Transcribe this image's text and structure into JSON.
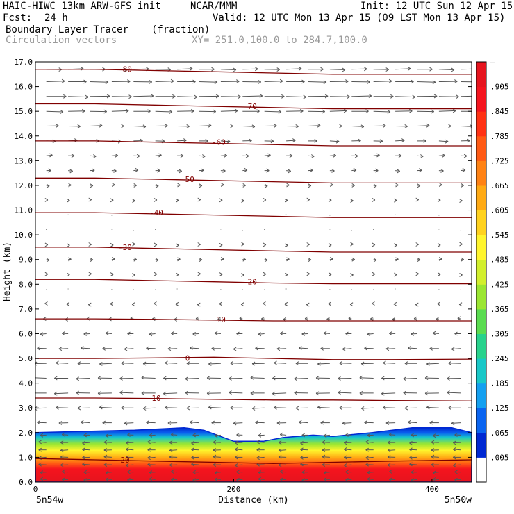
{
  "header": {
    "model": "HAIC-HIWC 13km ARW-GFS init",
    "org": "NCAR/MMM",
    "init": "Init: 12 UTC Sun 12 Apr 15",
    "fcst_label": "Fcst:",
    "fcst_value": "24 h",
    "valid": "Valid: 12 UTC Mon 13 Apr 15 (09 LST Mon 13 Apr 15)",
    "field_name": "Boundary Layer Tracer",
    "field_units": "(fraction)",
    "vectors_label": "Circulation vectors",
    "xy_label": "XY= 251.0,100.0 to 284.7,100.0"
  },
  "axes": {
    "ylabel": "Height (km)",
    "xlabel": "Distance (km)",
    "left_location": "5n54w",
    "right_location": "5n50w",
    "y_ticks": [
      "0.0",
      "1.0",
      "2.0",
      "3.0",
      "4.0",
      "5.0",
      "6.0",
      "7.0",
      "8.0",
      "9.0",
      "10.0",
      "11.0",
      "12.0",
      "13.0",
      "14.0",
      "15.0",
      "16.0",
      "17.0"
    ],
    "x_ticks": [
      "0",
      "200",
      "400"
    ]
  },
  "colorbar": {
    "labels": [
      ".005",
      ".065",
      ".125",
      ".185",
      ".245",
      ".305",
      ".365",
      ".425",
      ".485",
      ".545",
      ".605",
      ".665",
      ".725",
      ".785",
      ".845",
      ".905"
    ],
    "colors": [
      "#ffffff",
      "#0028d2",
      "#0a64f0",
      "#14a0f0",
      "#19c8c8",
      "#28d28c",
      "#5adc50",
      "#9be632",
      "#d2ef2d",
      "#fff52d",
      "#ffd21e",
      "#ffaa14",
      "#ff8214",
      "#ff5a14",
      "#ff3214",
      "#f5141e",
      "#e6141e"
    ]
  },
  "chart_data": {
    "type": "heatmap",
    "title": "Boundary Layer Tracer",
    "units": "fraction",
    "xlabel": "Distance (km)",
    "ylabel": "Height (km)",
    "xlim": [
      0,
      440
    ],
    "ylim": [
      0,
      17
    ],
    "tracer_top_km": {
      "x": [
        0,
        50,
        100,
        150,
        170,
        200,
        230,
        250,
        280,
        300,
        340,
        380,
        420,
        440
      ],
      "y": [
        2.0,
        2.05,
        2.1,
        2.2,
        2.1,
        1.65,
        1.65,
        1.8,
        1.9,
        1.85,
        2.0,
        2.2,
        2.2,
        2.0
      ]
    },
    "temperature_contours": [
      {
        "label": "20",
        "y": [
          0.95,
          0.9,
          0.85,
          0.8,
          0.75,
          0.8,
          0.85,
          0.9
        ]
      },
      {
        "label": "10",
        "y": [
          3.4,
          3.4,
          3.38,
          3.35,
          3.32,
          3.32,
          3.3,
          3.28
        ]
      },
      {
        "label": "0",
        "y": [
          5.0,
          5.0,
          5.02,
          5.05,
          5.0,
          4.95,
          4.95,
          4.97
        ]
      },
      {
        "label": "-10",
        "y": [
          6.6,
          6.6,
          6.58,
          6.55,
          6.52,
          6.52,
          6.52,
          6.52
        ]
      },
      {
        "label": "-20",
        "y": [
          8.2,
          8.2,
          8.15,
          8.1,
          8.05,
          8.02,
          8.02,
          8.02
        ]
      },
      {
        "label": "-30",
        "y": [
          9.5,
          9.5,
          9.45,
          9.4,
          9.35,
          9.3,
          9.3,
          9.3
        ]
      },
      {
        "label": "-40",
        "y": [
          10.9,
          10.9,
          10.85,
          10.8,
          10.75,
          10.7,
          10.7,
          10.7
        ]
      },
      {
        "label": "-50",
        "y": [
          12.3,
          12.3,
          12.25,
          12.2,
          12.15,
          12.1,
          12.1,
          12.1
        ]
      },
      {
        "label": "-60",
        "y": [
          13.8,
          13.8,
          13.75,
          13.7,
          13.65,
          13.6,
          13.6,
          13.6
        ]
      },
      {
        "label": "-70",
        "y": [
          15.3,
          15.3,
          15.25,
          15.2,
          15.15,
          15.1,
          15.1,
          15.1
        ]
      },
      {
        "label": "-80",
        "y": [
          16.7,
          16.7,
          16.65,
          16.6,
          16.55,
          16.5,
          16.5,
          16.5
        ]
      }
    ],
    "contour_x": [
      0,
      60,
      120,
      180,
      240,
      300,
      360,
      440
    ],
    "vector_rows_km": [
      0.1,
      0.4,
      0.7,
      1.0,
      1.3,
      1.6,
      1.9,
      2.4,
      3.0,
      3.6,
      4.2,
      4.8,
      5.4,
      6.0,
      6.6,
      7.2,
      7.8,
      8.4,
      9.0,
      9.6,
      10.2,
      10.8,
      11.4,
      12.0,
      12.6,
      13.2,
      13.8,
      14.4,
      15.0,
      15.6,
      16.2,
      16.7
    ],
    "vector_u_by_row": [
      -4,
      -4,
      -5,
      -5,
      -5,
      -5,
      -4,
      -6,
      -8,
      -9,
      -9,
      -8,
      -6,
      -4,
      -2,
      -1,
      0,
      1,
      2,
      1,
      0,
      0,
      1,
      2,
      3,
      4,
      6,
      8,
      11,
      13,
      12,
      10
    ],
    "legend": "none",
    "grid": false
  }
}
